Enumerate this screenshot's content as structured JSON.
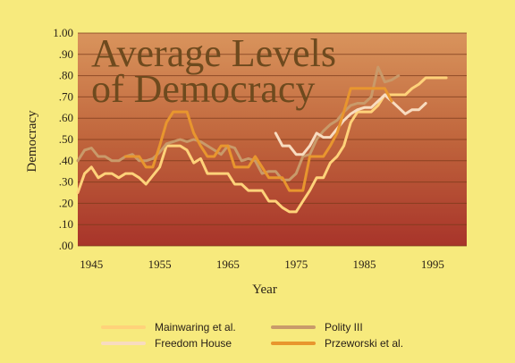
{
  "chart_data": {
    "type": "line",
    "title_lines": [
      "Average Levels",
      "of Democracy"
    ],
    "xlabel": "Year",
    "ylabel": "Democracy",
    "xlim": [
      1943,
      2000
    ],
    "ylim": [
      0,
      1.0
    ],
    "x_ticks": [
      1945,
      1955,
      1965,
      1975,
      1985,
      1995
    ],
    "y_ticks": [
      {
        "v": 0.0,
        "label": ".00"
      },
      {
        "v": 0.1,
        "label": ".10"
      },
      {
        "v": 0.2,
        "label": ".20"
      },
      {
        "v": 0.3,
        "label": ".30"
      },
      {
        "v": 0.4,
        "label": ".40"
      },
      {
        "v": 0.5,
        "label": ".50"
      },
      {
        "v": 0.6,
        "label": ".60"
      },
      {
        "v": 0.7,
        "label": ".70"
      },
      {
        "v": 0.8,
        "label": ".80"
      },
      {
        "v": 0.9,
        "label": ".90"
      },
      {
        "v": 1.0,
        "label": "1.00"
      }
    ],
    "grid": true,
    "legend_position": "bottom",
    "series": [
      {
        "name": "Mainwaring et al.",
        "color": "#ffd27a",
        "points": [
          [
            1943,
            0.25
          ],
          [
            1944,
            0.34
          ],
          [
            1945,
            0.37
          ],
          [
            1946,
            0.32
          ],
          [
            1947,
            0.34
          ],
          [
            1948,
            0.34
          ],
          [
            1949,
            0.32
          ],
          [
            1950,
            0.34
          ],
          [
            1951,
            0.34
          ],
          [
            1952,
            0.32
          ],
          [
            1953,
            0.29
          ],
          [
            1954,
            0.33
          ],
          [
            1955,
            0.37
          ],
          [
            1956,
            0.47
          ],
          [
            1957,
            0.47
          ],
          [
            1958,
            0.47
          ],
          [
            1959,
            0.45
          ],
          [
            1960,
            0.39
          ],
          [
            1961,
            0.41
          ],
          [
            1962,
            0.34
          ],
          [
            1963,
            0.34
          ],
          [
            1964,
            0.34
          ],
          [
            1965,
            0.34
          ],
          [
            1966,
            0.29
          ],
          [
            1967,
            0.29
          ],
          [
            1968,
            0.26
          ],
          [
            1969,
            0.26
          ],
          [
            1970,
            0.26
          ],
          [
            1971,
            0.21
          ],
          [
            1972,
            0.21
          ],
          [
            1973,
            0.18
          ],
          [
            1974,
            0.16
          ],
          [
            1975,
            0.16
          ],
          [
            1976,
            0.21
          ],
          [
            1977,
            0.26
          ],
          [
            1978,
            0.32
          ],
          [
            1979,
            0.32
          ],
          [
            1980,
            0.39
          ],
          [
            1981,
            0.42
          ],
          [
            1982,
            0.47
          ],
          [
            1983,
            0.58
          ],
          [
            1984,
            0.63
          ],
          [
            1985,
            0.63
          ],
          [
            1986,
            0.63
          ],
          [
            1987,
            0.66
          ],
          [
            1988,
            0.71
          ],
          [
            1989,
            0.71
          ],
          [
            1990,
            0.71
          ],
          [
            1991,
            0.71
          ],
          [
            1992,
            0.74
          ],
          [
            1993,
            0.76
          ],
          [
            1994,
            0.79
          ],
          [
            1995,
            0.79
          ],
          [
            1996,
            0.79
          ],
          [
            1997,
            0.79
          ]
        ]
      },
      {
        "name": "Polity III",
        "color": "#c99a6a",
        "points": [
          [
            1943,
            0.4
          ],
          [
            1944,
            0.45
          ],
          [
            1945,
            0.46
          ],
          [
            1946,
            0.42
          ],
          [
            1947,
            0.42
          ],
          [
            1948,
            0.4
          ],
          [
            1949,
            0.4
          ],
          [
            1950,
            0.42
          ],
          [
            1951,
            0.43
          ],
          [
            1952,
            0.4
          ],
          [
            1953,
            0.4
          ],
          [
            1954,
            0.41
          ],
          [
            1955,
            0.44
          ],
          [
            1956,
            0.48
          ],
          [
            1957,
            0.49
          ],
          [
            1958,
            0.5
          ],
          [
            1959,
            0.49
          ],
          [
            1960,
            0.5
          ],
          [
            1961,
            0.49
          ],
          [
            1962,
            0.47
          ],
          [
            1963,
            0.45
          ],
          [
            1964,
            0.43
          ],
          [
            1965,
            0.47
          ],
          [
            1966,
            0.46
          ],
          [
            1967,
            0.4
          ],
          [
            1968,
            0.41
          ],
          [
            1969,
            0.4
          ],
          [
            1970,
            0.34
          ],
          [
            1971,
            0.35
          ],
          [
            1972,
            0.35
          ],
          [
            1973,
            0.31
          ],
          [
            1974,
            0.31
          ],
          [
            1975,
            0.34
          ],
          [
            1976,
            0.42
          ],
          [
            1977,
            0.43
          ],
          [
            1978,
            0.5
          ],
          [
            1979,
            0.54
          ],
          [
            1980,
            0.57
          ],
          [
            1981,
            0.59
          ],
          [
            1982,
            0.63
          ],
          [
            1983,
            0.66
          ],
          [
            1984,
            0.67
          ],
          [
            1985,
            0.67
          ],
          [
            1986,
            0.7
          ],
          [
            1987,
            0.84
          ],
          [
            1988,
            0.77
          ],
          [
            1989,
            0.78
          ],
          [
            1990,
            0.8
          ]
        ]
      },
      {
        "name": "Freedom House",
        "color": "#f8dcc0",
        "points": [
          [
            1972,
            0.53
          ],
          [
            1973,
            0.47
          ],
          [
            1974,
            0.47
          ],
          [
            1975,
            0.43
          ],
          [
            1976,
            0.43
          ],
          [
            1977,
            0.47
          ],
          [
            1978,
            0.53
          ],
          [
            1979,
            0.51
          ],
          [
            1980,
            0.51
          ],
          [
            1981,
            0.55
          ],
          [
            1982,
            0.59
          ],
          [
            1983,
            0.62
          ],
          [
            1984,
            0.64
          ],
          [
            1985,
            0.65
          ],
          [
            1986,
            0.65
          ],
          [
            1987,
            0.68
          ],
          [
            1988,
            0.71
          ],
          [
            1989,
            0.68
          ],
          [
            1990,
            0.65
          ],
          [
            1991,
            0.62
          ],
          [
            1992,
            0.64
          ],
          [
            1993,
            0.64
          ],
          [
            1994,
            0.67
          ]
        ]
      },
      {
        "name": "Przeworski et al.",
        "color": "#e8962e",
        "points": [
          [
            1950,
            0.42
          ],
          [
            1951,
            0.42
          ],
          [
            1952,
            0.42
          ],
          [
            1953,
            0.37
          ],
          [
            1954,
            0.37
          ],
          [
            1955,
            0.47
          ],
          [
            1956,
            0.58
          ],
          [
            1957,
            0.63
          ],
          [
            1958,
            0.63
          ],
          [
            1959,
            0.63
          ],
          [
            1960,
            0.53
          ],
          [
            1961,
            0.47
          ],
          [
            1962,
            0.42
          ],
          [
            1963,
            0.42
          ],
          [
            1964,
            0.47
          ],
          [
            1965,
            0.47
          ],
          [
            1966,
            0.37
          ],
          [
            1967,
            0.37
          ],
          [
            1968,
            0.37
          ],
          [
            1969,
            0.42
          ],
          [
            1970,
            0.37
          ],
          [
            1971,
            0.32
          ],
          [
            1972,
            0.32
          ],
          [
            1973,
            0.32
          ],
          [
            1974,
            0.26
          ],
          [
            1975,
            0.26
          ],
          [
            1976,
            0.26
          ],
          [
            1977,
            0.42
          ],
          [
            1978,
            0.42
          ],
          [
            1979,
            0.42
          ],
          [
            1980,
            0.47
          ],
          [
            1981,
            0.53
          ],
          [
            1982,
            0.63
          ],
          [
            1983,
            0.74
          ],
          [
            1984,
            0.74
          ],
          [
            1985,
            0.74
          ],
          [
            1986,
            0.74
          ],
          [
            1987,
            0.74
          ],
          [
            1988,
            0.74
          ],
          [
            1989,
            0.68
          ]
        ]
      }
    ]
  }
}
